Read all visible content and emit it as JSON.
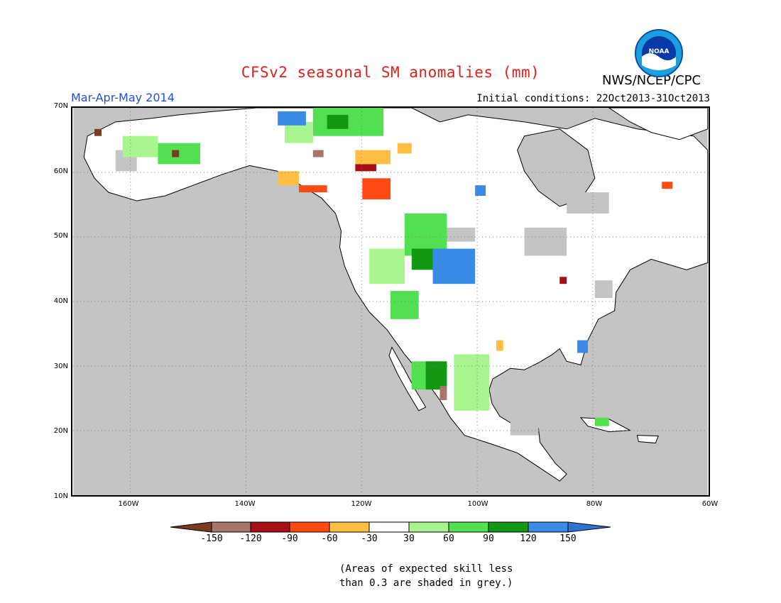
{
  "title": "CFSv2 seasonal SM anomalies (mm)",
  "agency": "NWS/NCEP/CPC",
  "season": "Mar-Apr-May 2014",
  "initial_conditions": "Initial conditions: 22Oct2013-31Oct2013",
  "logo_text": "NOAA",
  "latitudes": [
    "70N",
    "60N",
    "50N",
    "40N",
    "30N",
    "20N",
    "10N"
  ],
  "longitudes": [
    "160W",
    "140W",
    "120W",
    "100W",
    "80W",
    "60W"
  ],
  "colorbar": {
    "labels": [
      "-150",
      "-120",
      "-90",
      "-60",
      "-30",
      "30",
      "60",
      "90",
      "120",
      "150"
    ],
    "colors": [
      "#7a3b1f",
      "#a77569",
      "#a50f15",
      "#ff4a14",
      "#ffbf44",
      "#ffffff",
      "#a8f590",
      "#52e052",
      "#129812",
      "#3a8ae8",
      "#2f74d0"
    ]
  },
  "note_line1": "(Areas of expected skill less",
  "note_line2": "than 0.3 are shaded in grey.)",
  "colors": {
    "ocean": "#c4c4c4",
    "land": "#ffffff",
    "title": "#e0201b",
    "season": "#1f4fe0"
  }
}
